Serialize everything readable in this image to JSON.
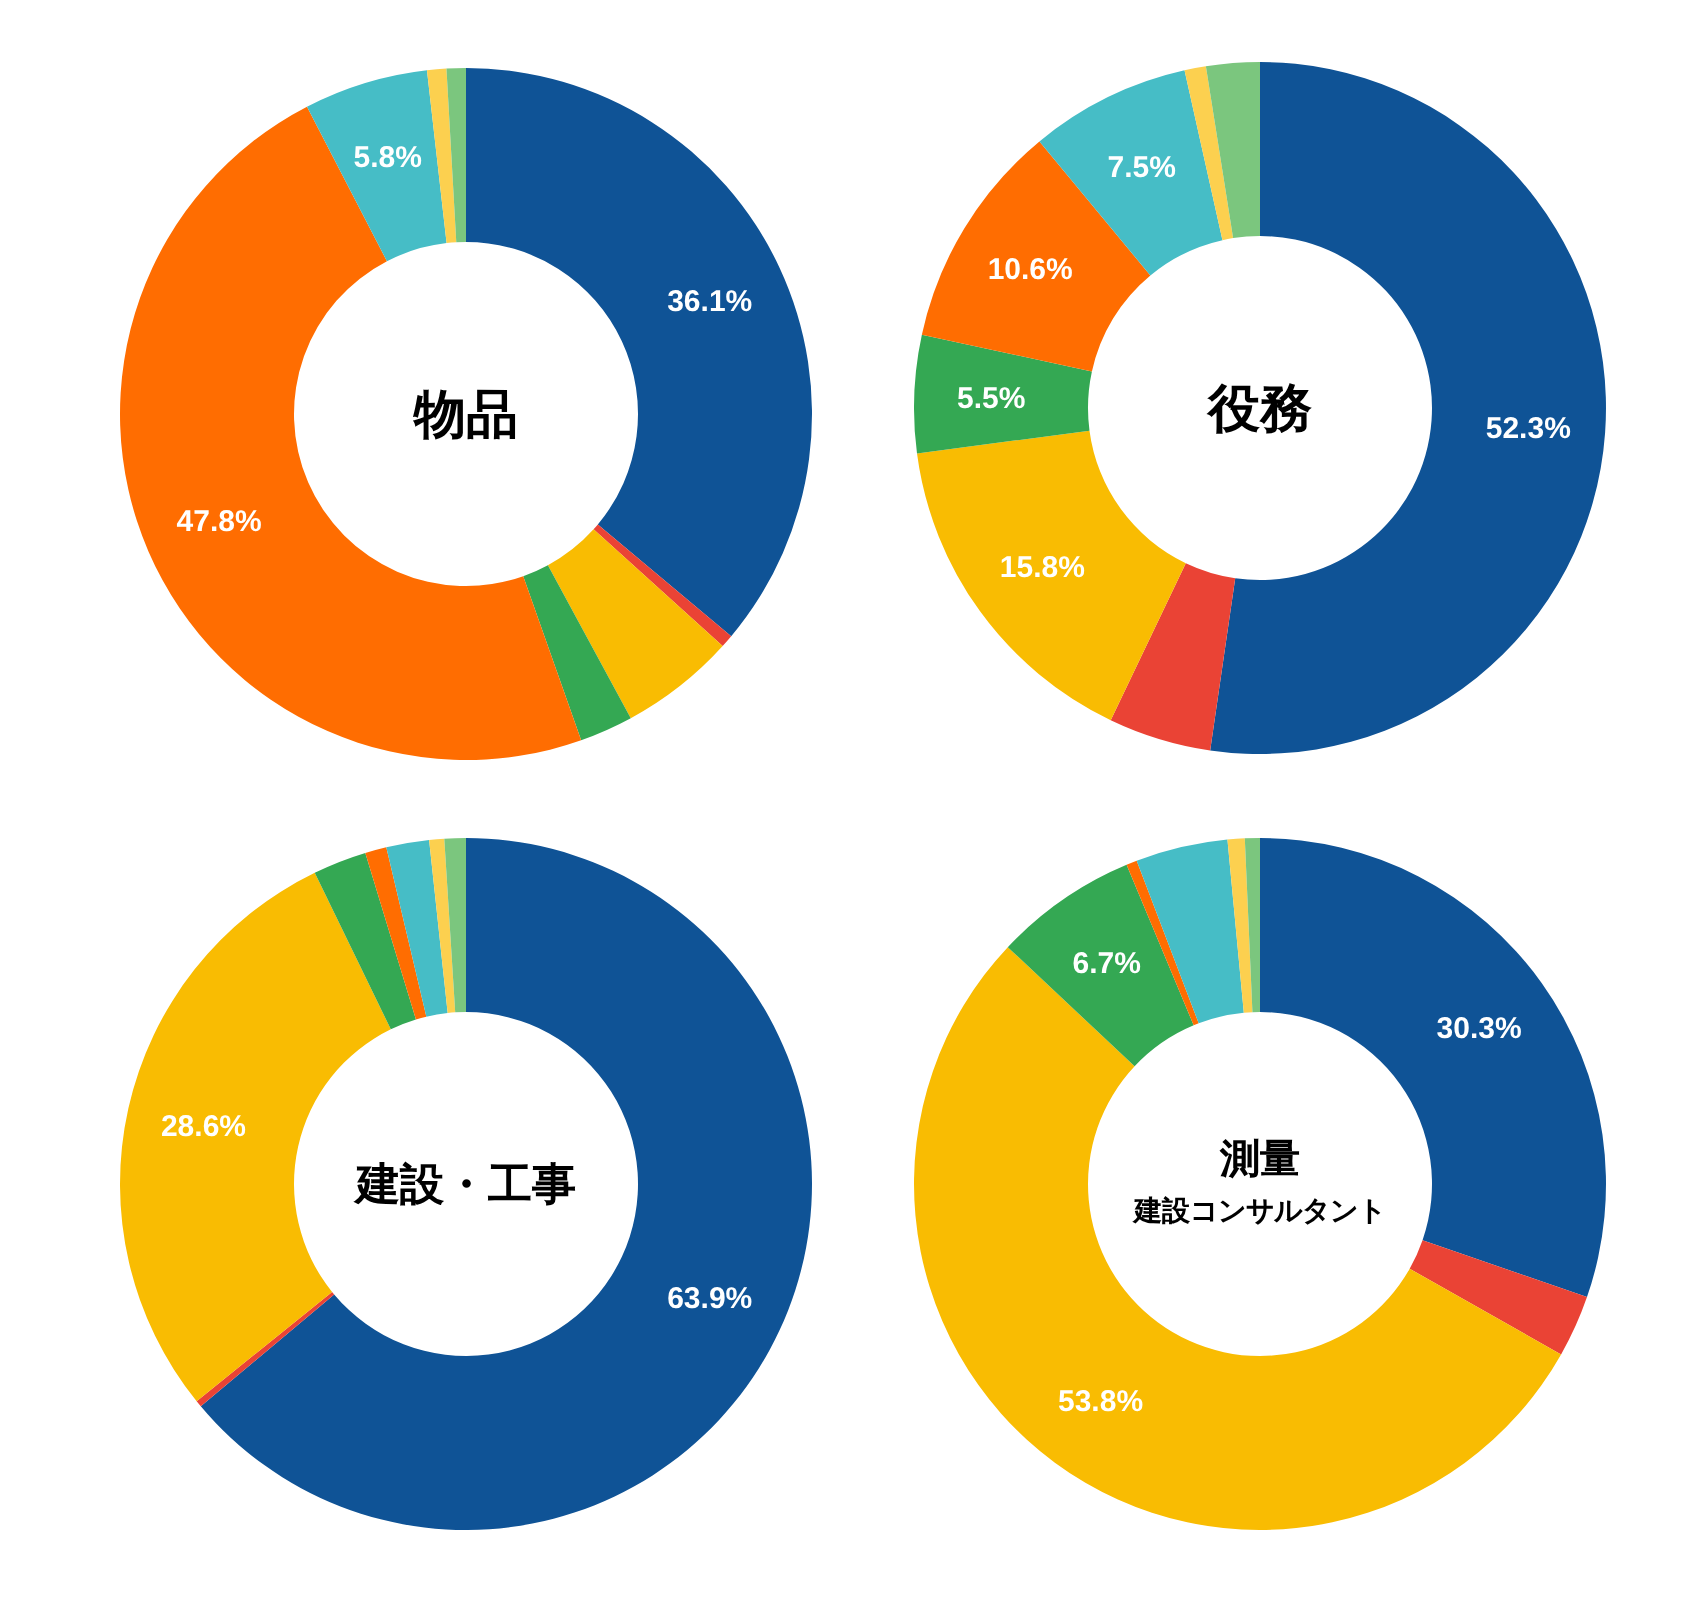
{
  "chart_data": [
    {
      "type": "donut",
      "title": "物品",
      "categories": [
        null,
        null,
        null,
        null,
        null,
        null,
        null,
        null
      ],
      "values": [
        36.1,
        0.6,
        5.4,
        2.5,
        47.8,
        5.8,
        0.9,
        0.9
      ],
      "colors": [
        "#0f5396",
        "#ea4335",
        "#f9bc02",
        "#34a853",
        "#ff6d01",
        "#46bdc6",
        "#fcd04f",
        "#7bc67e"
      ],
      "value_labels": [
        "36.1%",
        null,
        null,
        null,
        "47.8%",
        "5.8%",
        null,
        null
      ]
    },
    {
      "type": "donut",
      "title": "役務",
      "categories": [
        null,
        null,
        null,
        null,
        null,
        null,
        null,
        null
      ],
      "values": [
        52.3,
        4.8,
        15.8,
        5.5,
        10.6,
        7.5,
        1.0,
        2.5
      ],
      "colors": [
        "#0f5396",
        "#ea4335",
        "#f9bc02",
        "#34a853",
        "#ff6d01",
        "#46bdc6",
        "#fcd04f",
        "#7bc67e"
      ],
      "value_labels": [
        "52.3%",
        null,
        "15.8%",
        "5.5%",
        "10.6%",
        "7.5%",
        null,
        null
      ]
    },
    {
      "type": "donut",
      "title": "建設・工事",
      "categories": [
        null,
        null,
        null,
        null,
        null,
        null,
        null,
        null
      ],
      "values": [
        63.9,
        0.3,
        28.6,
        2.5,
        1.0,
        2.0,
        0.7,
        1.0
      ],
      "colors": [
        "#0f5396",
        "#ea4335",
        "#f9bc02",
        "#34a853",
        "#ff6d01",
        "#46bdc6",
        "#fcd04f",
        "#7bc67e"
      ],
      "value_labels": [
        "63.9%",
        null,
        "28.6%",
        null,
        null,
        null,
        null,
        null
      ]
    },
    {
      "type": "donut",
      "title": "測量",
      "subtitle": "建設コンサルタント",
      "categories": [
        null,
        null,
        null,
        null,
        null,
        null,
        null,
        null
      ],
      "values": [
        30.3,
        2.9,
        53.8,
        6.7,
        0.5,
        4.3,
        0.8,
        0.7
      ],
      "colors": [
        "#0f5396",
        "#ea4335",
        "#f9bc02",
        "#34a853",
        "#ff6d01",
        "#46bdc6",
        "#fcd04f",
        "#7bc67e"
      ],
      "value_labels": [
        "30.3%",
        null,
        "53.8%",
        "6.7%",
        null,
        null,
        null,
        null
      ]
    }
  ]
}
